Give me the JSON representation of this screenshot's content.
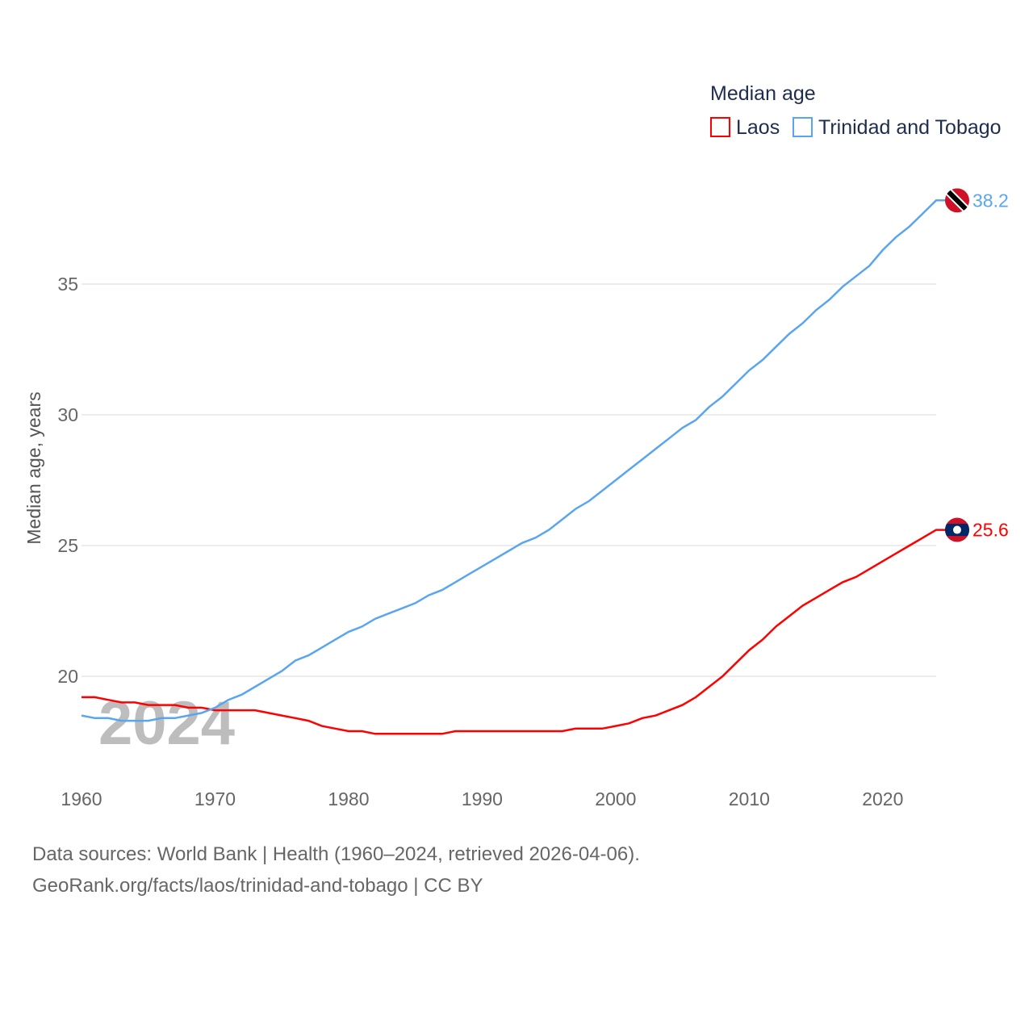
{
  "chart_data": {
    "type": "line",
    "title": "Median age",
    "ylabel": "Median age, years",
    "xlabel": "",
    "watermark_year": "2024",
    "xlim": [
      1960,
      2024
    ],
    "ylim": [
      17.0,
      38.2
    ],
    "xticks": [
      1960,
      1970,
      1980,
      1990,
      2000,
      2010,
      2020
    ],
    "yticks": [
      20,
      25,
      30,
      35
    ],
    "grid": true,
    "legend_position": "top-right",
    "x": [
      1960,
      1961,
      1962,
      1963,
      1964,
      1965,
      1966,
      1967,
      1968,
      1969,
      1970,
      1971,
      1972,
      1973,
      1974,
      1975,
      1976,
      1977,
      1978,
      1979,
      1980,
      1981,
      1982,
      1983,
      1984,
      1985,
      1986,
      1987,
      1988,
      1989,
      1990,
      1991,
      1992,
      1993,
      1994,
      1995,
      1996,
      1997,
      1998,
      1999,
      2000,
      2001,
      2002,
      2003,
      2004,
      2005,
      2006,
      2007,
      2008,
      2009,
      2010,
      2011,
      2012,
      2013,
      2014,
      2015,
      2016,
      2017,
      2018,
      2019,
      2020,
      2021,
      2022,
      2023,
      2024
    ],
    "series": [
      {
        "name": "Laos",
        "color": "#ff0000",
        "end_label": "25.6",
        "flag": "laos",
        "values": [
          19.2,
          19.2,
          19.1,
          19.0,
          19.0,
          18.9,
          18.9,
          18.9,
          18.8,
          18.8,
          18.7,
          18.7,
          18.7,
          18.7,
          18.6,
          18.5,
          18.4,
          18.3,
          18.1,
          18.0,
          17.9,
          17.9,
          17.8,
          17.8,
          17.8,
          17.8,
          17.8,
          17.8,
          17.9,
          17.9,
          17.9,
          17.9,
          17.9,
          17.9,
          17.9,
          17.9,
          17.9,
          18.0,
          18.0,
          18.0,
          18.1,
          18.2,
          18.4,
          18.5,
          18.7,
          18.9,
          19.2,
          19.6,
          20.0,
          20.5,
          21.0,
          21.4,
          21.9,
          22.3,
          22.7,
          23.0,
          23.3,
          23.6,
          23.8,
          24.1,
          24.4,
          24.7,
          25.0,
          25.3,
          25.6
        ]
      },
      {
        "name": "Trinidad and Tobago",
        "color": "#5aa5ef",
        "end_label": "38.2",
        "flag": "trinidad-and-tobago",
        "values": [
          18.5,
          18.4,
          18.4,
          18.3,
          18.3,
          18.3,
          18.4,
          18.4,
          18.5,
          18.6,
          18.8,
          19.1,
          19.3,
          19.6,
          19.9,
          20.2,
          20.6,
          20.8,
          21.1,
          21.4,
          21.7,
          21.9,
          22.2,
          22.4,
          22.6,
          22.8,
          23.1,
          23.3,
          23.6,
          23.9,
          24.2,
          24.5,
          24.8,
          25.1,
          25.3,
          25.6,
          26.0,
          26.4,
          26.7,
          27.1,
          27.5,
          27.9,
          28.3,
          28.7,
          29.1,
          29.5,
          29.8,
          30.3,
          30.7,
          31.2,
          31.7,
          32.1,
          32.6,
          33.1,
          33.5,
          34.0,
          34.4,
          34.9,
          35.3,
          35.7,
          36.3,
          36.8,
          37.2,
          37.7,
          38.2
        ]
      }
    ]
  },
  "footer": {
    "sources": "Data sources: World Bank | Health (1960–2024, retrieved 2026-04-06).",
    "credit": "GeoRank.org/facts/laos/trinidad-and-tobago | CC BY"
  }
}
